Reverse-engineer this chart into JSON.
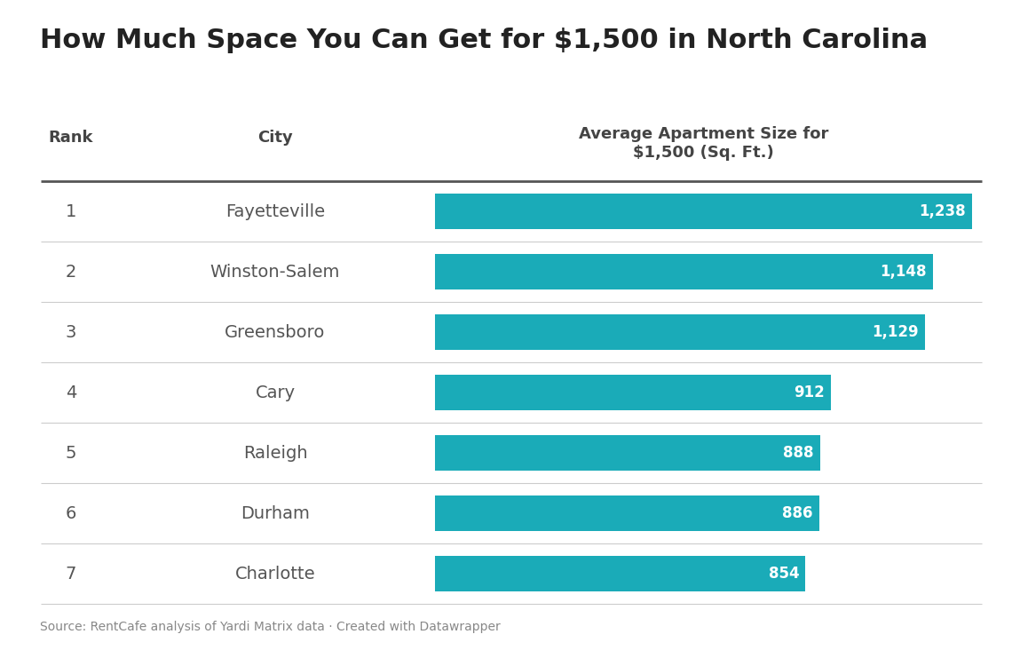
{
  "title": "How Much Space You Can Get for $1,500 in North Carolina",
  "col_rank": "Rank",
  "col_city": "City",
  "col_size": "Average Apartment Size for\n$1,500 (Sq. Ft.)",
  "ranks": [
    1,
    2,
    3,
    4,
    5,
    6,
    7
  ],
  "cities": [
    "Fayetteville",
    "Winston-Salem",
    "Greensboro",
    "Cary",
    "Raleigh",
    "Durham",
    "Charlotte"
  ],
  "values": [
    1238,
    1148,
    1129,
    912,
    888,
    886,
    854
  ],
  "labels": [
    "1,238",
    "1,148",
    "1,129",
    "912",
    "888",
    "886",
    "854"
  ],
  "bar_color": "#1AABB8",
  "background_color": "#FFFFFF",
  "title_color": "#222222",
  "header_color": "#444444",
  "text_color": "#555555",
  "source_text": "Source: RentCafe analysis of Yardi Matrix data · Created with Datawrapper",
  "title_fontsize": 22,
  "header_fontsize": 13,
  "cell_fontsize": 13,
  "label_fontsize": 12,
  "source_fontsize": 10,
  "bar_max": 1238,
  "header_line_color": "#555555",
  "row_line_color": "#CCCCCC"
}
